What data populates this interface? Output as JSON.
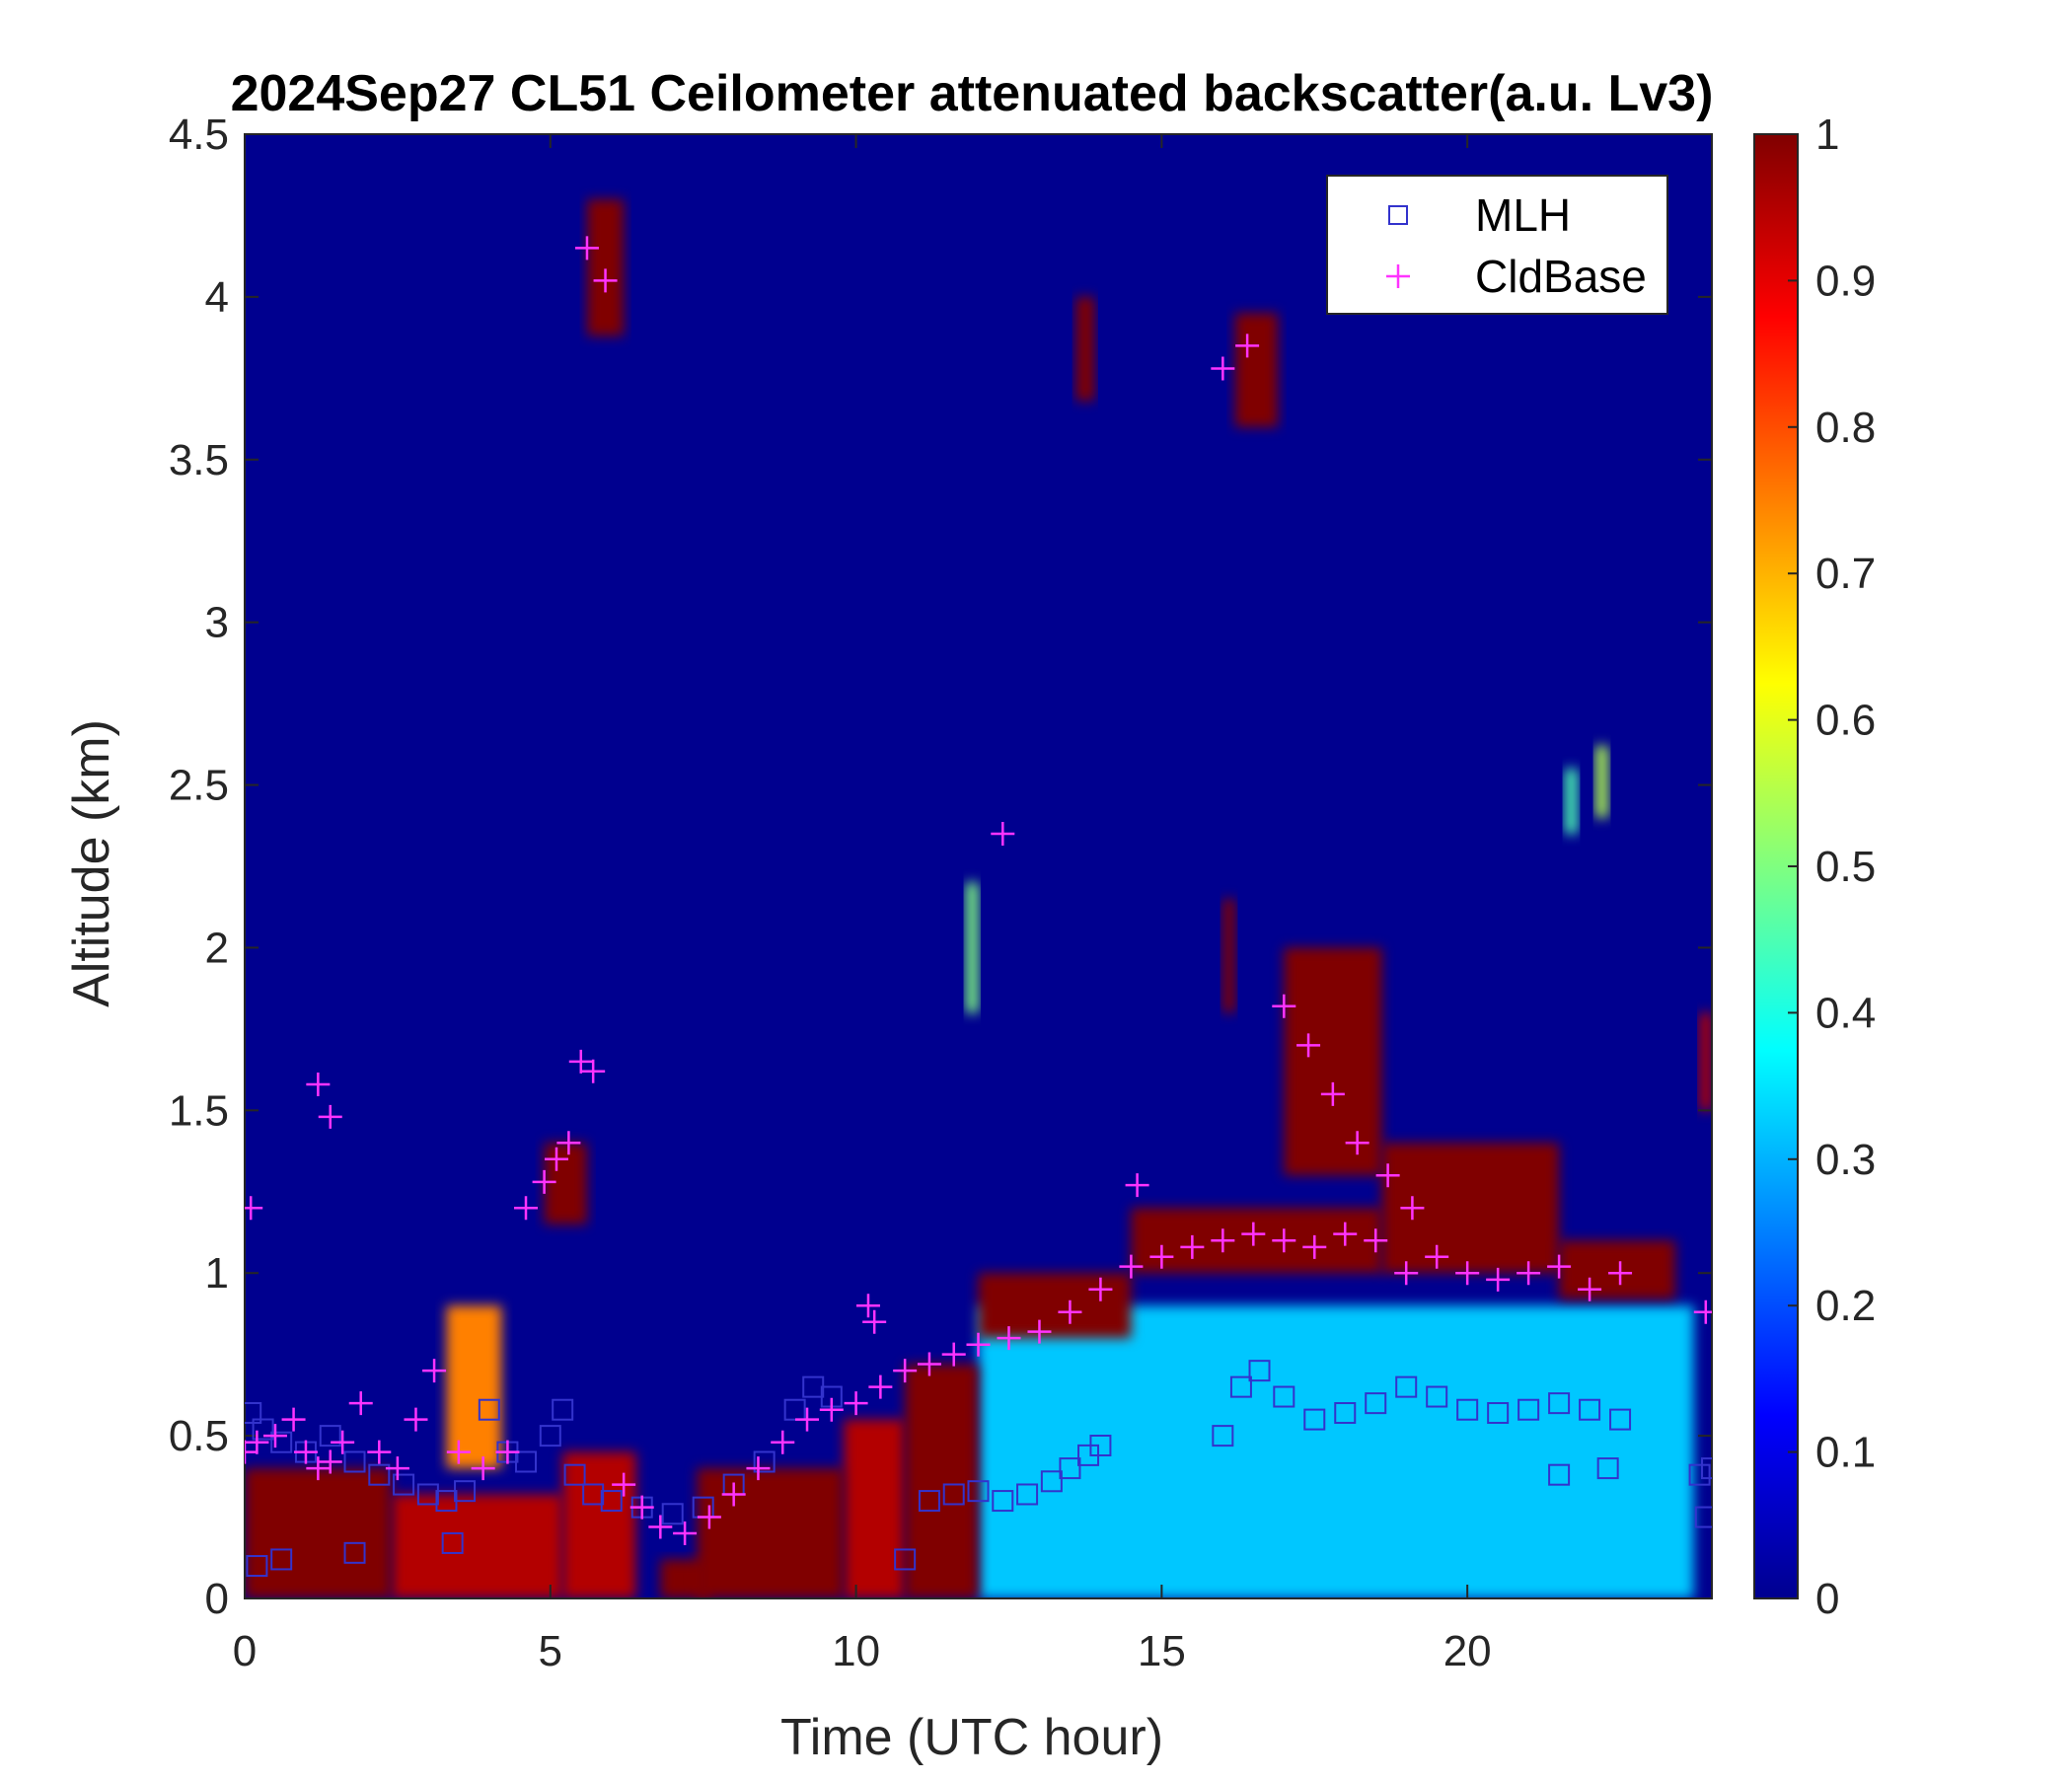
{
  "chart_data": {
    "type": "heatmap",
    "title": "2024Sep27 CL51 Ceilometer attenuated backscatter(a.u. Lv3)",
    "xlabel": "Time (UTC hour)",
    "ylabel": "Altitude (km)",
    "xlim": [
      0,
      24
    ],
    "ylim": [
      0,
      4.5
    ],
    "x_ticks": [
      "0",
      "5",
      "10",
      "15",
      "20"
    ],
    "y_ticks": [
      "0",
      "0.5",
      "1",
      "1.5",
      "2",
      "2.5",
      "3",
      "3.5",
      "4",
      "4.5"
    ],
    "colorbar": {
      "range": [
        0,
        1
      ],
      "ticks": [
        "0",
        "0.1",
        "0.2",
        "0.3",
        "0.4",
        "0.5",
        "0.6",
        "0.7",
        "0.8",
        "0.9",
        "1"
      ],
      "colormap": "jet"
    },
    "legend": {
      "placement": "top-right",
      "entries": [
        {
          "label": "MLH",
          "marker": "square",
          "color": "#3333cc"
        },
        {
          "label": "CldBase",
          "marker": "plus",
          "color": "#ff33ff"
        }
      ]
    },
    "series": [
      {
        "name": "MLH",
        "marker": "square",
        "color": "#3333cc",
        "x": [
          0.1,
          0.3,
          0.6,
          1.0,
          1.4,
          1.8,
          2.2,
          2.6,
          3.0,
          3.3,
          3.6,
          4.0,
          4.3,
          4.6,
          5.0,
          5.2,
          5.4,
          5.7,
          6.0,
          6.5,
          7.0,
          7.5,
          8.0,
          8.5,
          9.0,
          9.3,
          9.6,
          10.8,
          11.2,
          11.6,
          12.0,
          12.4,
          12.8,
          13.2,
          13.5,
          13.8,
          14.0,
          16.0,
          16.3,
          16.6,
          17.0,
          17.5,
          18.0,
          18.5,
          19.0,
          19.5,
          20.0,
          20.5,
          21.0,
          21.5,
          22.0,
          22.5,
          23.8,
          24.0,
          0.2,
          0.6,
          1.8,
          3.4,
          21.5,
          22.3,
          23.9
        ],
        "y": [
          0.57,
          0.52,
          0.48,
          0.45,
          0.5,
          0.42,
          0.38,
          0.35,
          0.32,
          0.3,
          0.33,
          0.58,
          0.45,
          0.42,
          0.5,
          0.58,
          0.38,
          0.32,
          0.3,
          0.28,
          0.26,
          0.28,
          0.35,
          0.42,
          0.58,
          0.65,
          0.62,
          0.12,
          0.3,
          0.32,
          0.33,
          0.3,
          0.32,
          0.36,
          0.4,
          0.44,
          0.47,
          0.5,
          0.65,
          0.7,
          0.62,
          0.55,
          0.57,
          0.6,
          0.65,
          0.62,
          0.58,
          0.57,
          0.58,
          0.6,
          0.58,
          0.55,
          0.38,
          0.4,
          0.1,
          0.12,
          0.14,
          0.17,
          0.38,
          0.4,
          0.25
        ]
      },
      {
        "name": "CldBase",
        "marker": "plus",
        "color": "#ff33ff",
        "x": [
          0.0,
          0.2,
          0.5,
          0.8,
          1.0,
          1.2,
          1.4,
          1.6,
          1.9,
          2.2,
          2.5,
          2.8,
          3.1,
          3.5,
          3.9,
          4.3,
          4.6,
          4.9,
          5.1,
          5.3,
          5.6,
          5.9,
          6.2,
          6.5,
          6.8,
          7.2,
          7.6,
          8.0,
          8.4,
          8.8,
          9.2,
          9.6,
          10.0,
          10.4,
          10.8,
          11.2,
          11.6,
          12.0,
          12.5,
          13.0,
          13.5,
          14.0,
          14.5,
          15.0,
          15.5,
          16.0,
          16.5,
          17.0,
          17.5,
          18.0,
          18.5,
          19.0,
          19.5,
          20.0,
          20.5,
          21.0,
          21.5,
          22.0,
          22.5,
          23.9,
          1.2,
          1.4,
          5.5,
          5.7,
          12.4,
          14.6,
          10.2,
          10.3,
          16.0,
          16.4,
          17.0,
          17.4,
          17.8,
          18.2,
          18.7,
          19.1,
          0.1
        ],
        "y": [
          0.45,
          0.48,
          0.5,
          0.55,
          0.45,
          0.4,
          0.42,
          0.48,
          0.6,
          0.45,
          0.4,
          0.55,
          0.7,
          0.45,
          0.4,
          0.45,
          1.2,
          1.28,
          1.35,
          1.4,
          4.15,
          4.05,
          0.35,
          0.28,
          0.22,
          0.2,
          0.25,
          0.32,
          0.4,
          0.48,
          0.55,
          0.58,
          0.6,
          0.65,
          0.7,
          0.72,
          0.75,
          0.78,
          0.8,
          0.82,
          0.88,
          0.95,
          1.02,
          1.05,
          1.08,
          1.1,
          1.12,
          1.1,
          1.08,
          1.12,
          1.1,
          1.0,
          1.05,
          1.0,
          0.98,
          1.0,
          1.02,
          0.95,
          1.0,
          0.88,
          1.58,
          1.48,
          1.65,
          1.62,
          2.35,
          1.27,
          0.9,
          0.85,
          3.78,
          3.85,
          1.82,
          1.7,
          1.55,
          1.4,
          1.3,
          1.2,
          1.2
        ]
      }
    ],
    "cloud_features": [
      {
        "x0": 0.0,
        "x1": 2.4,
        "y0": 0.0,
        "y1": 0.4,
        "level": 1.0
      },
      {
        "x0": 2.4,
        "x1": 5.2,
        "y0": 0.0,
        "y1": 0.32,
        "level": 0.95
      },
      {
        "x0": 5.2,
        "x1": 6.4,
        "y0": 0.0,
        "y1": 0.45,
        "level": 0.95
      },
      {
        "x0": 3.3,
        "x1": 4.2,
        "y0": 0.4,
        "y1": 0.9,
        "level": 0.75
      },
      {
        "x0": 6.8,
        "x1": 7.6,
        "y0": 0.0,
        "y1": 0.12,
        "level": 1.0
      },
      {
        "x0": 7.4,
        "x1": 9.8,
        "y0": 0.0,
        "y1": 0.4,
        "level": 1.0
      },
      {
        "x0": 9.8,
        "x1": 10.8,
        "y0": 0.0,
        "y1": 0.55,
        "level": 0.95
      },
      {
        "x0": 10.8,
        "x1": 12.0,
        "y0": 0.0,
        "y1": 0.72,
        "level": 1.0
      },
      {
        "x0": 12.0,
        "x1": 14.5,
        "y0": 0.8,
        "y1": 1.0,
        "level": 1.0
      },
      {
        "x0": 14.5,
        "x1": 18.6,
        "y0": 1.0,
        "y1": 1.2,
        "level": 1.0
      },
      {
        "x0": 17.0,
        "x1": 18.6,
        "y0": 1.3,
        "y1": 2.0,
        "level": 1.0
      },
      {
        "x0": 18.6,
        "x1": 21.5,
        "y0": 1.0,
        "y1": 1.4,
        "level": 1.0
      },
      {
        "x0": 21.5,
        "x1": 23.4,
        "y0": 0.92,
        "y1": 1.1,
        "level": 1.0
      },
      {
        "x0": 4.9,
        "x1": 5.6,
        "y0": 1.15,
        "y1": 1.4,
        "level": 1.0
      },
      {
        "x0": 5.6,
        "x1": 6.2,
        "y0": 3.88,
        "y1": 4.3,
        "level": 1.0
      },
      {
        "x0": 13.6,
        "x1": 13.9,
        "y0": 3.68,
        "y1": 4.0,
        "level": 1.0
      },
      {
        "x0": 16.2,
        "x1": 16.9,
        "y0": 3.6,
        "y1": 3.95,
        "level": 1.0
      },
      {
        "x0": 16.0,
        "x1": 16.2,
        "y0": 1.8,
        "y1": 2.15,
        "level": 1.0
      },
      {
        "x0": 12.0,
        "x1": 23.7,
        "y0": 0.0,
        "y1": 0.9,
        "level": 0.32
      },
      {
        "x0": 21.6,
        "x1": 21.8,
        "y0": 2.35,
        "y1": 2.55,
        "level": 0.45
      },
      {
        "x0": 22.1,
        "x1": 22.3,
        "y0": 2.4,
        "y1": 2.62,
        "level": 0.55
      },
      {
        "x0": 11.8,
        "x1": 12.0,
        "y0": 1.8,
        "y1": 2.2,
        "level": 0.5
      },
      {
        "x0": 23.8,
        "x1": 24.0,
        "y0": 1.5,
        "y1": 1.8,
        "level": 0.95
      }
    ]
  }
}
